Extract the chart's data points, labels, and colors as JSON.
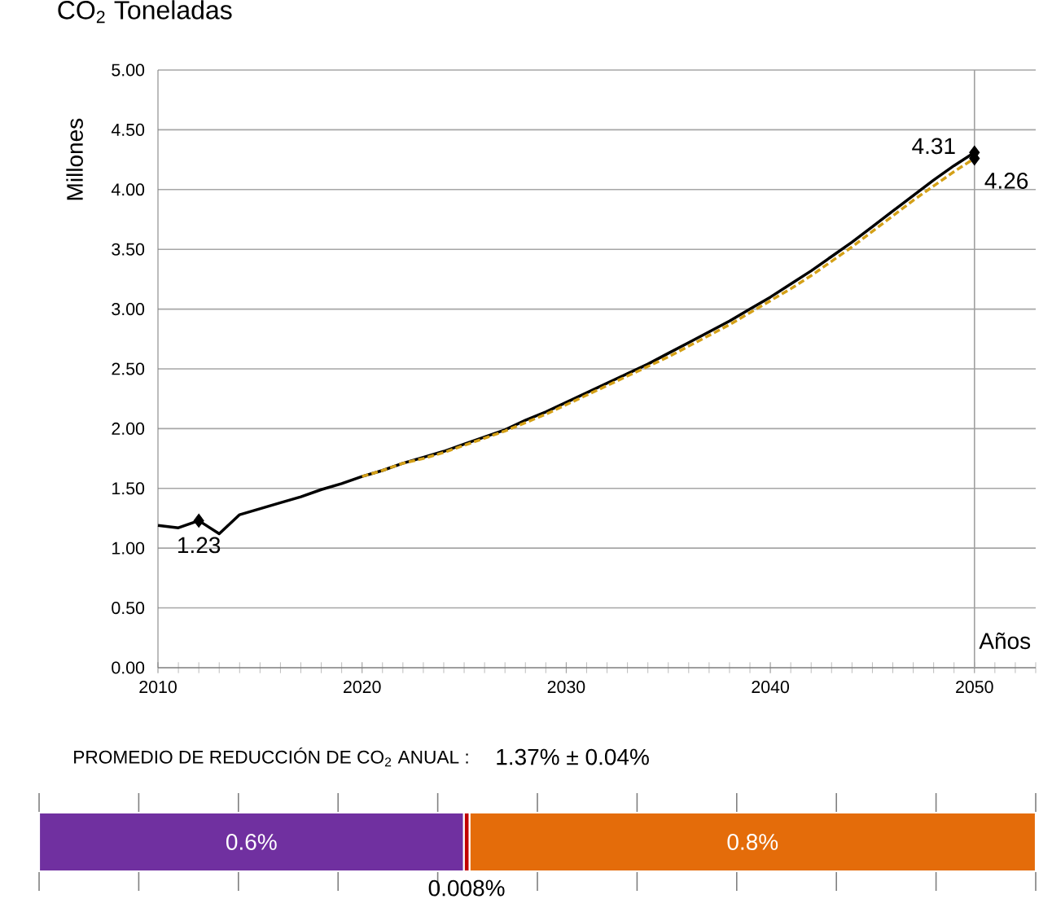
{
  "chart_data": [
    {
      "type": "line",
      "title": "CO$_{2}$ Toneladas",
      "xlabel": "Años",
      "ylabel": "Millones",
      "xlim": [
        2010,
        2053
      ],
      "ylim": [
        0,
        5
      ],
      "xticks": [
        2010,
        2020,
        2030,
        2040,
        2050
      ],
      "yticks": [
        {
          "value": 0,
          "label": "0.00"
        },
        {
          "value": 0.5,
          "label": "0.50"
        },
        {
          "value": 1,
          "label": "1.00"
        },
        {
          "value": 1.5,
          "label": "1.50"
        },
        {
          "value": 2,
          "label": "2.00"
        },
        {
          "value": 2.5,
          "label": "2.50"
        },
        {
          "value": 3,
          "label": "3.00"
        },
        {
          "value": 3.5,
          "label": "3.50"
        },
        {
          "value": 4,
          "label": "4.00"
        },
        {
          "value": 4.5,
          "label": "4.50"
        },
        {
          "value": 5,
          "label": "5.00"
        }
      ],
      "grid": "y",
      "x": [
        2010,
        2011,
        2012,
        2013,
        2014,
        2015,
        2016,
        2017,
        2018,
        2019,
        2020,
        2021,
        2022,
        2023,
        2024,
        2025,
        2026,
        2027,
        2028,
        2029,
        2030,
        2031,
        2032,
        2033,
        2034,
        2035,
        2036,
        2037,
        2038,
        2039,
        2040,
        2041,
        2042,
        2043,
        2044,
        2045,
        2046,
        2047,
        2048,
        2049,
        2050
      ],
      "series": [
        {
          "color": "#000000",
          "line_style": "solid",
          "values": [
            1.19,
            1.17,
            1.23,
            1.12,
            1.28,
            1.33,
            1.38,
            1.43,
            1.49,
            1.54,
            1.6,
            1.65,
            1.71,
            1.76,
            1.81,
            1.87,
            1.93,
            1.99,
            2.07,
            2.14,
            2.22,
            2.3,
            2.38,
            2.46,
            2.54,
            2.63,
            2.72,
            2.81,
            2.9,
            3.0,
            3.1,
            3.21,
            3.32,
            3.44,
            3.56,
            3.69,
            3.82,
            3.95,
            4.08,
            4.2,
            4.31
          ]
        },
        {
          "color": "#d4a017",
          "line_style": "dashed",
          "x": [
            2020,
            2021,
            2022,
            2023,
            2024,
            2025,
            2026,
            2027,
            2028,
            2029,
            2030,
            2031,
            2032,
            2033,
            2034,
            2035,
            2036,
            2037,
            2038,
            2039,
            2040,
            2041,
            2042,
            2043,
            2044,
            2045,
            2046,
            2047,
            2048,
            2049,
            2050
          ],
          "values": [
            1.6,
            1.65,
            1.71,
            1.75,
            1.8,
            1.86,
            1.92,
            1.98,
            2.05,
            2.12,
            2.2,
            2.28,
            2.36,
            2.44,
            2.52,
            2.6,
            2.69,
            2.78,
            2.87,
            2.97,
            3.07,
            3.17,
            3.28,
            3.4,
            3.52,
            3.65,
            3.78,
            3.91,
            4.03,
            4.15,
            4.26
          ]
        },
        {
          "type": "scatter",
          "color": "#000000",
          "marker": "diamond",
          "x": [
            2012,
            2050,
            2050
          ],
          "values": [
            1.23,
            4.31,
            4.26
          ],
          "value_labels": [
            "1.23",
            "4.31",
            "4.26"
          ]
        }
      ],
      "ref_lines": [
        {
          "axis": "x",
          "value": 2050,
          "color": "#a0a0a0"
        }
      ]
    },
    {
      "type": "bar",
      "orientation": "horizontal",
      "stacked": true,
      "title": "PROMEDIO DE REDUCCIÓN DE CO$_{2}$ ANUAL :",
      "subtitle": "1.37% ± 0.04%",
      "categories": [
        null
      ],
      "series": [
        {
          "color": "#7030a0",
          "values": [
            0.6
          ],
          "value_labels": [
            "0.6%"
          ]
        },
        {
          "color": "#c00000",
          "values": [
            0.008
          ],
          "value_labels": [
            "0.008%"
          ]
        },
        {
          "color": "#e46c0a",
          "values": [
            0.8
          ],
          "value_labels": [
            "0.8%"
          ]
        }
      ]
    }
  ]
}
